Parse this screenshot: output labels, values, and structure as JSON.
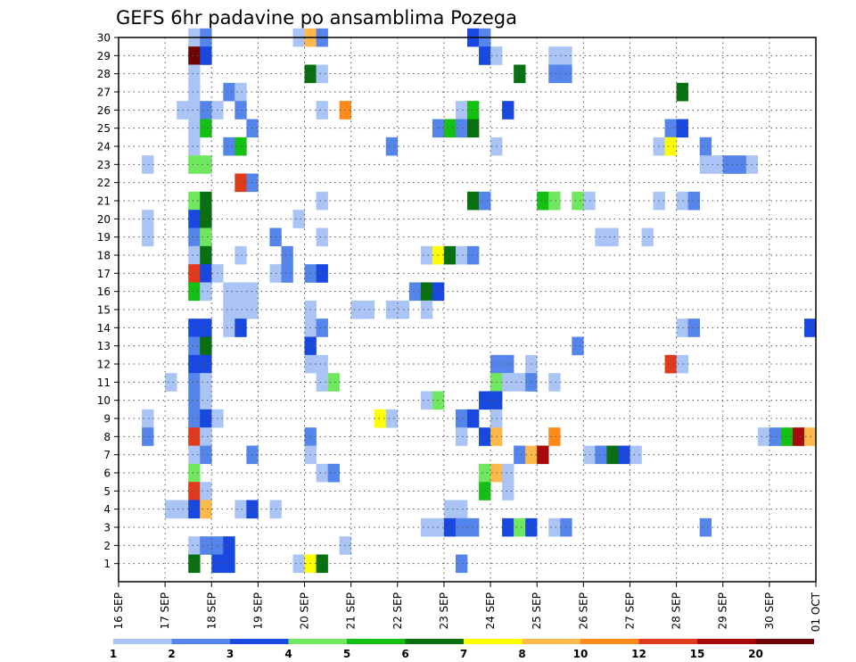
{
  "chart_data": {
    "type": "heatmap",
    "title": "GEFS 6hr padavine po ansamblima Pozega",
    "xlabel": "",
    "ylabel": "",
    "x_tick_labels": [
      "16 SEP",
      "17 SEP",
      "18 SEP",
      "19 SEP",
      "20 SEP",
      "21 SEP",
      "22 SEP",
      "23 SEP",
      "24 SEP",
      "25 SEP",
      "26 SEP",
      "27 SEP",
      "28 SEP",
      "29 SEP",
      "30 SEP",
      "01 OCT"
    ],
    "y_tick_labels": [
      "1",
      "2",
      "3",
      "4",
      "5",
      "6",
      "7",
      "8",
      "9",
      "10",
      "11",
      "12",
      "13",
      "14",
      "15",
      "16",
      "17",
      "18",
      "19",
      "20",
      "21",
      "22",
      "23",
      "24",
      "25",
      "26",
      "27",
      "28",
      "29",
      "30"
    ],
    "xlim_days": [
      0,
      15
    ],
    "ylim": [
      0,
      30
    ],
    "time_step_hours": 6,
    "grid": "dotted",
    "legend_position": "bottom",
    "color_scale": {
      "boundaries": [
        "1",
        "2",
        "3",
        "4",
        "5",
        "6",
        "7",
        "8",
        "10",
        "12",
        "15",
        "20"
      ],
      "colors": [
        "#aac4f5",
        "#5585ea",
        "#1848e0",
        "#6fe860",
        "#14c014",
        "#087010",
        "#ffff00",
        "#ffb84a",
        "#ff8a1a",
        "#e03a1a",
        "#a80808",
        "#6e0505"
      ]
    },
    "cells": [
      {
        "m": 30,
        "d": 1.5,
        "c": 1
      },
      {
        "m": 30,
        "d": 1.75,
        "c": 2
      },
      {
        "m": 30,
        "d": 3.75,
        "c": 1
      },
      {
        "m": 30,
        "d": 4.0,
        "c": 8
      },
      {
        "m": 30,
        "d": 4.25,
        "c": 2
      },
      {
        "m": 30,
        "d": 7.5,
        "c": 3
      },
      {
        "m": 30,
        "d": 7.75,
        "c": 2
      },
      {
        "m": 29,
        "d": 1.5,
        "c": 12
      },
      {
        "m": 29,
        "d": 1.75,
        "c": 3
      },
      {
        "m": 29,
        "d": 7.75,
        "c": 3
      },
      {
        "m": 29,
        "d": 8.0,
        "c": 1
      },
      {
        "m": 29,
        "d": 9.25,
        "c": 1
      },
      {
        "m": 29,
        "d": 9.5,
        "c": 1
      },
      {
        "m": 28,
        "d": 1.5,
        "c": 1
      },
      {
        "m": 28,
        "d": 4.0,
        "c": 6
      },
      {
        "m": 28,
        "d": 4.25,
        "c": 1
      },
      {
        "m": 28,
        "d": 8.5,
        "c": 6
      },
      {
        "m": 28,
        "d": 9.25,
        "c": 2
      },
      {
        "m": 28,
        "d": 9.5,
        "c": 2
      },
      {
        "m": 27,
        "d": 1.5,
        "c": 1
      },
      {
        "m": 27,
        "d": 2.25,
        "c": 2
      },
      {
        "m": 27,
        "d": 2.5,
        "c": 1
      },
      {
        "m": 27,
        "d": 12.0,
        "c": 6
      },
      {
        "m": 26,
        "d": 1.25,
        "c": 1
      },
      {
        "m": 26,
        "d": 1.5,
        "c": 1
      },
      {
        "m": 26,
        "d": 1.75,
        "c": 2
      },
      {
        "m": 26,
        "d": 2.0,
        "c": 1
      },
      {
        "m": 26,
        "d": 2.5,
        "c": 2
      },
      {
        "m": 26,
        "d": 4.25,
        "c": 1
      },
      {
        "m": 26,
        "d": 4.75,
        "c": 9
      },
      {
        "m": 26,
        "d": 7.25,
        "c": 1
      },
      {
        "m": 26,
        "d": 7.5,
        "c": 5
      },
      {
        "m": 26,
        "d": 8.25,
        "c": 3
      },
      {
        "m": 25,
        "d": 1.5,
        "c": 1
      },
      {
        "m": 25,
        "d": 1.75,
        "c": 5
      },
      {
        "m": 25,
        "d": 2.75,
        "c": 2
      },
      {
        "m": 25,
        "d": 6.75,
        "c": 2
      },
      {
        "m": 25,
        "d": 7.0,
        "c": 5
      },
      {
        "m": 25,
        "d": 7.25,
        "c": 2
      },
      {
        "m": 25,
        "d": 7.5,
        "c": 6
      },
      {
        "m": 25,
        "d": 11.75,
        "c": 2
      },
      {
        "m": 25,
        "d": 12.0,
        "c": 3
      },
      {
        "m": 24,
        "d": 1.5,
        "c": 1
      },
      {
        "m": 24,
        "d": 2.25,
        "c": 2
      },
      {
        "m": 24,
        "d": 2.5,
        "c": 5
      },
      {
        "m": 24,
        "d": 5.75,
        "c": 2
      },
      {
        "m": 24,
        "d": 8.0,
        "c": 1
      },
      {
        "m": 24,
        "d": 11.5,
        "c": 1
      },
      {
        "m": 24,
        "d": 11.75,
        "c": 7
      },
      {
        "m": 24,
        "d": 12.5,
        "c": 2
      },
      {
        "m": 23,
        "d": 0.5,
        "c": 1
      },
      {
        "m": 23,
        "d": 1.5,
        "c": 4
      },
      {
        "m": 23,
        "d": 1.75,
        "c": 4
      },
      {
        "m": 23,
        "d": 12.5,
        "c": 1
      },
      {
        "m": 23,
        "d": 12.75,
        "c": 1
      },
      {
        "m": 23,
        "d": 13.0,
        "c": 2
      },
      {
        "m": 23,
        "d": 13.25,
        "c": 2
      },
      {
        "m": 23,
        "d": 13.5,
        "c": 1
      },
      {
        "m": 22,
        "d": 2.5,
        "c": 10
      },
      {
        "m": 22,
        "d": 2.75,
        "c": 2
      },
      {
        "m": 21,
        "d": 1.5,
        "c": 4
      },
      {
        "m": 21,
        "d": 1.75,
        "c": 6
      },
      {
        "m": 21,
        "d": 4.25,
        "c": 1
      },
      {
        "m": 21,
        "d": 7.5,
        "c": 6
      },
      {
        "m": 21,
        "d": 7.75,
        "c": 2
      },
      {
        "m": 21,
        "d": 9.0,
        "c": 5
      },
      {
        "m": 21,
        "d": 9.25,
        "c": 4
      },
      {
        "m": 21,
        "d": 9.75,
        "c": 4
      },
      {
        "m": 21,
        "d": 10.0,
        "c": 1
      },
      {
        "m": 21,
        "d": 11.5,
        "c": 1
      },
      {
        "m": 21,
        "d": 12.0,
        "c": 1
      },
      {
        "m": 21,
        "d": 12.25,
        "c": 2
      },
      {
        "m": 20,
        "d": 0.5,
        "c": 1
      },
      {
        "m": 20,
        "d": 1.5,
        "c": 3
      },
      {
        "m": 20,
        "d": 1.75,
        "c": 6
      },
      {
        "m": 20,
        "d": 3.75,
        "c": 1
      },
      {
        "m": 19,
        "d": 0.5,
        "c": 1
      },
      {
        "m": 19,
        "d": 1.5,
        "c": 2
      },
      {
        "m": 19,
        "d": 1.75,
        "c": 4
      },
      {
        "m": 19,
        "d": 3.25,
        "c": 2
      },
      {
        "m": 19,
        "d": 4.25,
        "c": 1
      },
      {
        "m": 19,
        "d": 10.25,
        "c": 1
      },
      {
        "m": 19,
        "d": 10.5,
        "c": 1
      },
      {
        "m": 19,
        "d": 11.25,
        "c": 1
      },
      {
        "m": 18,
        "d": 1.5,
        "c": 1
      },
      {
        "m": 18,
        "d": 1.75,
        "c": 6
      },
      {
        "m": 18,
        "d": 2.5,
        "c": 1
      },
      {
        "m": 18,
        "d": 3.5,
        "c": 2
      },
      {
        "m": 18,
        "d": 6.5,
        "c": 1
      },
      {
        "m": 18,
        "d": 6.75,
        "c": 7
      },
      {
        "m": 18,
        "d": 7.0,
        "c": 6
      },
      {
        "m": 18,
        "d": 7.25,
        "c": 1
      },
      {
        "m": 18,
        "d": 7.5,
        "c": 2
      },
      {
        "m": 17,
        "d": 1.5,
        "c": 10
      },
      {
        "m": 17,
        "d": 1.75,
        "c": 3
      },
      {
        "m": 17,
        "d": 2.0,
        "c": 1
      },
      {
        "m": 17,
        "d": 3.25,
        "c": 1
      },
      {
        "m": 17,
        "d": 3.5,
        "c": 2
      },
      {
        "m": 17,
        "d": 4.0,
        "c": 2
      },
      {
        "m": 17,
        "d": 4.25,
        "c": 3
      },
      {
        "m": 16,
        "d": 1.5,
        "c": 5
      },
      {
        "m": 16,
        "d": 1.75,
        "c": 1
      },
      {
        "m": 16,
        "d": 2.25,
        "c": 1
      },
      {
        "m": 16,
        "d": 2.5,
        "c": 1
      },
      {
        "m": 16,
        "d": 2.75,
        "c": 1
      },
      {
        "m": 16,
        "d": 6.25,
        "c": 2
      },
      {
        "m": 16,
        "d": 6.5,
        "c": 6
      },
      {
        "m": 16,
        "d": 6.75,
        "c": 3
      },
      {
        "m": 15,
        "d": 2.25,
        "c": 1
      },
      {
        "m": 15,
        "d": 2.5,
        "c": 1
      },
      {
        "m": 15,
        "d": 2.75,
        "c": 1
      },
      {
        "m": 15,
        "d": 4.0,
        "c": 1
      },
      {
        "m": 15,
        "d": 5.0,
        "c": 1
      },
      {
        "m": 15,
        "d": 5.25,
        "c": 1
      },
      {
        "m": 15,
        "d": 5.75,
        "c": 1
      },
      {
        "m": 15,
        "d": 6.0,
        "c": 1
      },
      {
        "m": 15,
        "d": 6.5,
        "c": 1
      },
      {
        "m": 14,
        "d": 1.5,
        "c": 3
      },
      {
        "m": 14,
        "d": 1.75,
        "c": 3
      },
      {
        "m": 14,
        "d": 2.25,
        "c": 1
      },
      {
        "m": 14,
        "d": 2.5,
        "c": 3
      },
      {
        "m": 14,
        "d": 4.0,
        "c": 1
      },
      {
        "m": 14,
        "d": 4.25,
        "c": 2
      },
      {
        "m": 14,
        "d": 12.0,
        "c": 1
      },
      {
        "m": 14,
        "d": 12.25,
        "c": 2
      },
      {
        "m": 14,
        "d": 14.75,
        "c": 3
      },
      {
        "m": 13,
        "d": 1.5,
        "c": 2
      },
      {
        "m": 13,
        "d": 1.75,
        "c": 6
      },
      {
        "m": 13,
        "d": 4.0,
        "c": 3
      },
      {
        "m": 13,
        "d": 9.75,
        "c": 2
      },
      {
        "m": 12,
        "d": 1.5,
        "c": 3
      },
      {
        "m": 12,
        "d": 1.75,
        "c": 3
      },
      {
        "m": 12,
        "d": 4.0,
        "c": 1
      },
      {
        "m": 12,
        "d": 4.25,
        "c": 1
      },
      {
        "m": 12,
        "d": 8.0,
        "c": 2
      },
      {
        "m": 12,
        "d": 8.25,
        "c": 2
      },
      {
        "m": 12,
        "d": 8.75,
        "c": 1
      },
      {
        "m": 12,
        "d": 11.75,
        "c": 10
      },
      {
        "m": 12,
        "d": 12.0,
        "c": 1
      },
      {
        "m": 11,
        "d": 1.0,
        "c": 1
      },
      {
        "m": 11,
        "d": 1.5,
        "c": 2
      },
      {
        "m": 11,
        "d": 1.75,
        "c": 1
      },
      {
        "m": 11,
        "d": 4.25,
        "c": 1
      },
      {
        "m": 11,
        "d": 4.5,
        "c": 4
      },
      {
        "m": 11,
        "d": 8.0,
        "c": 4
      },
      {
        "m": 11,
        "d": 8.25,
        "c": 1
      },
      {
        "m": 11,
        "d": 8.5,
        "c": 1
      },
      {
        "m": 11,
        "d": 8.75,
        "c": 2
      },
      {
        "m": 11,
        "d": 9.25,
        "c": 1
      },
      {
        "m": 10,
        "d": 1.5,
        "c": 2
      },
      {
        "m": 10,
        "d": 1.75,
        "c": 1
      },
      {
        "m": 10,
        "d": 6.5,
        "c": 1
      },
      {
        "m": 10,
        "d": 6.75,
        "c": 4
      },
      {
        "m": 10,
        "d": 7.75,
        "c": 3
      },
      {
        "m": 10,
        "d": 8.0,
        "c": 3
      },
      {
        "m": 9,
        "d": 0.5,
        "c": 1
      },
      {
        "m": 9,
        "d": 1.5,
        "c": 2
      },
      {
        "m": 9,
        "d": 1.75,
        "c": 3
      },
      {
        "m": 9,
        "d": 2.0,
        "c": 1
      },
      {
        "m": 9,
        "d": 5.5,
        "c": 7
      },
      {
        "m": 9,
        "d": 5.75,
        "c": 1
      },
      {
        "m": 9,
        "d": 7.25,
        "c": 2
      },
      {
        "m": 9,
        "d": 7.5,
        "c": 3
      },
      {
        "m": 9,
        "d": 8.0,
        "c": 1
      },
      {
        "m": 8,
        "d": 0.5,
        "c": 2
      },
      {
        "m": 8,
        "d": 1.5,
        "c": 10
      },
      {
        "m": 8,
        "d": 1.75,
        "c": 1
      },
      {
        "m": 8,
        "d": 4.0,
        "c": 2
      },
      {
        "m": 8,
        "d": 7.25,
        "c": 1
      },
      {
        "m": 8,
        "d": 7.75,
        "c": 3
      },
      {
        "m": 8,
        "d": 8.0,
        "c": 8
      },
      {
        "m": 8,
        "d": 9.25,
        "c": 9
      },
      {
        "m": 8,
        "d": 13.75,
        "c": 1
      },
      {
        "m": 8,
        "d": 14.0,
        "c": 2
      },
      {
        "m": 8,
        "d": 14.25,
        "c": 5
      },
      {
        "m": 8,
        "d": 14.5,
        "c": 11
      },
      {
        "m": 8,
        "d": 14.75,
        "c": 8
      },
      {
        "m": 8,
        "d": 15.0,
        "c": 8
      },
      {
        "m": 7,
        "d": 1.5,
        "c": 1
      },
      {
        "m": 7,
        "d": 1.75,
        "c": 2
      },
      {
        "m": 7,
        "d": 2.75,
        "c": 2
      },
      {
        "m": 7,
        "d": 4.0,
        "c": 1
      },
      {
        "m": 7,
        "d": 8.5,
        "c": 2
      },
      {
        "m": 7,
        "d": 8.75,
        "c": 8
      },
      {
        "m": 7,
        "d": 9.0,
        "c": 11
      },
      {
        "m": 7,
        "d": 10.0,
        "c": 1
      },
      {
        "m": 7,
        "d": 10.25,
        "c": 2
      },
      {
        "m": 7,
        "d": 10.5,
        "c": 6
      },
      {
        "m": 7,
        "d": 10.75,
        "c": 3
      },
      {
        "m": 7,
        "d": 11.0,
        "c": 1
      },
      {
        "m": 6,
        "d": 1.5,
        "c": 4
      },
      {
        "m": 6,
        "d": 4.25,
        "c": 1
      },
      {
        "m": 6,
        "d": 4.5,
        "c": 2
      },
      {
        "m": 6,
        "d": 7.75,
        "c": 4
      },
      {
        "m": 6,
        "d": 8.0,
        "c": 8
      },
      {
        "m": 6,
        "d": 8.25,
        "c": 1
      },
      {
        "m": 5,
        "d": 1.5,
        "c": 10
      },
      {
        "m": 5,
        "d": 1.75,
        "c": 1
      },
      {
        "m": 5,
        "d": 7.75,
        "c": 5
      },
      {
        "m": 5,
        "d": 8.25,
        "c": 1
      },
      {
        "m": 4,
        "d": 1.0,
        "c": 1
      },
      {
        "m": 4,
        "d": 1.25,
        "c": 1
      },
      {
        "m": 4,
        "d": 1.5,
        "c": 3
      },
      {
        "m": 4,
        "d": 1.75,
        "c": 8
      },
      {
        "m": 4,
        "d": 2.5,
        "c": 1
      },
      {
        "m": 4,
        "d": 2.75,
        "c": 3
      },
      {
        "m": 4,
        "d": 3.25,
        "c": 1
      },
      {
        "m": 4,
        "d": 7.0,
        "c": 1
      },
      {
        "m": 4,
        "d": 7.25,
        "c": 1
      },
      {
        "m": 3,
        "d": 6.5,
        "c": 1
      },
      {
        "m": 3,
        "d": 6.75,
        "c": 1
      },
      {
        "m": 3,
        "d": 7.0,
        "c": 3
      },
      {
        "m": 3,
        "d": 7.25,
        "c": 2
      },
      {
        "m": 3,
        "d": 7.5,
        "c": 2
      },
      {
        "m": 3,
        "d": 8.25,
        "c": 3
      },
      {
        "m": 3,
        "d": 8.5,
        "c": 4
      },
      {
        "m": 3,
        "d": 8.75,
        "c": 3
      },
      {
        "m": 3,
        "d": 9.25,
        "c": 1
      },
      {
        "m": 3,
        "d": 9.5,
        "c": 2
      },
      {
        "m": 3,
        "d": 12.5,
        "c": 2
      },
      {
        "m": 2,
        "d": 1.5,
        "c": 1
      },
      {
        "m": 2,
        "d": 1.75,
        "c": 2
      },
      {
        "m": 2,
        "d": 2.0,
        "c": 2
      },
      {
        "m": 2,
        "d": 2.25,
        "c": 3
      },
      {
        "m": 2,
        "d": 4.75,
        "c": 1
      },
      {
        "m": 1,
        "d": 1.5,
        "c": 6
      },
      {
        "m": 1,
        "d": 2.0,
        "c": 3
      },
      {
        "m": 1,
        "d": 2.25,
        "c": 3
      },
      {
        "m": 1,
        "d": 3.75,
        "c": 1
      },
      {
        "m": 1,
        "d": 4.0,
        "c": 7
      },
      {
        "m": 1,
        "d": 4.25,
        "c": 6
      },
      {
        "m": 1,
        "d": 7.25,
        "c": 2
      }
    ]
  }
}
